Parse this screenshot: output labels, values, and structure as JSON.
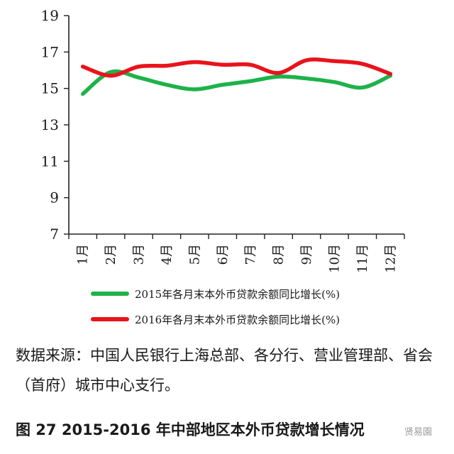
{
  "chart_data": {
    "type": "line",
    "categories": [
      "1月",
      "2月",
      "3月",
      "4月",
      "5月",
      "6月",
      "7月",
      "8月",
      "9月",
      "10月",
      "11月",
      "12月"
    ],
    "series": [
      {
        "name": "2015年各月末本外币贷款余额同比增长(%)",
        "color": "#1eb24a",
        "values": [
          14.7,
          15.9,
          15.6,
          15.2,
          14.95,
          15.2,
          15.4,
          15.65,
          15.55,
          15.35,
          15.05,
          15.7
        ]
      },
      {
        "name": "2016年各月末本外币贷款余额同比增长(%)",
        "color": "#e8141b",
        "values": [
          16.2,
          15.7,
          16.2,
          16.25,
          16.45,
          16.3,
          16.3,
          15.85,
          16.55,
          16.5,
          16.35,
          15.8
        ]
      }
    ],
    "ylim": [
      7,
      19
    ],
    "yticks": [
      "7",
      "9",
      "11",
      "13",
      "15",
      "17",
      "19"
    ],
    "grid": false,
    "legend_position": "bottom"
  },
  "source_text": "数据来源：中国人民银行上海总部、各分行、营业管理部、省会（首府）城市中心支行。",
  "caption": "图 27   2015-2016 年中部地区本外币贷款增长情况",
  "watermark": "贤易園"
}
